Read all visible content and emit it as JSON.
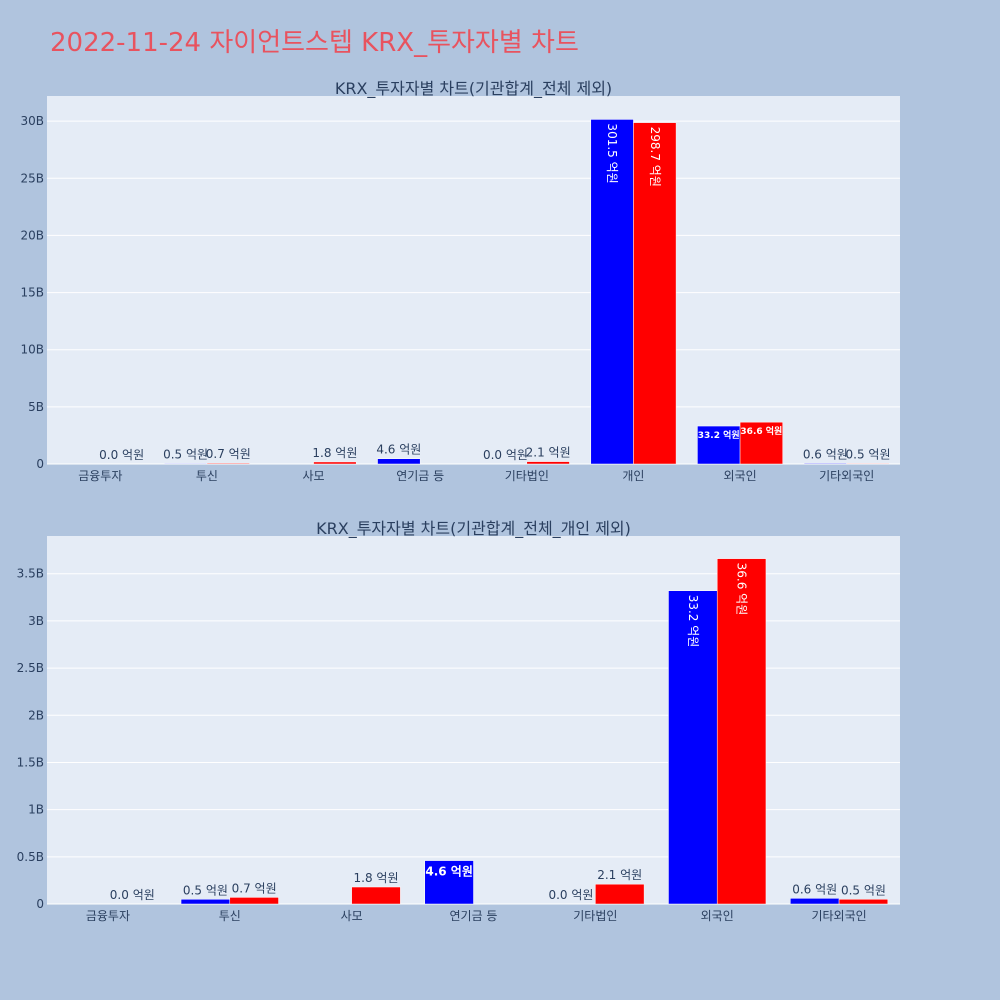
{
  "page": {
    "title": "2022-11-24 자이언트스텝 KRX_투자자별 차트"
  },
  "colors": {
    "background": "#b0c4de",
    "plot_bg": "#e5ecf6",
    "buy": "#0000ff",
    "sell": "#ff0000",
    "title": "#e8535f"
  },
  "chart_data": [
    {
      "type": "bar",
      "title": "KRX_투자자별 차트(기관합계_전체 제외)",
      "categories": [
        "금융투자",
        "투신",
        "사모",
        "연기금 등",
        "기타법인",
        "개인",
        "외국인",
        "기타외국인"
      ],
      "y_ticks": [
        "0",
        "5B",
        "10B",
        "15B",
        "20B",
        "25B",
        "30B"
      ],
      "ylim": [
        0,
        32200000000
      ],
      "series": [
        {
          "color": "#0000ff",
          "values": [
            0,
            50000000,
            0,
            460000000,
            0,
            30150000000,
            3320000000,
            60000000
          ],
          "labels": [
            "",
            "0.5 억원",
            "",
            "4.6 억원",
            "0.0 억원",
            "301.5 억원",
            "33.2 억원",
            "0.6 억원"
          ]
        },
        {
          "color": "#ff0000",
          "values": [
            0,
            70000000,
            180000000,
            0,
            210000000,
            29870000000,
            3660000000,
            50000000
          ],
          "labels": [
            "0.0 억원",
            "0.7 억원",
            "1.8 억원",
            "",
            "2.1 억원",
            "298.7 억원",
            "36.6 억원",
            "0.5 억원"
          ]
        }
      ]
    },
    {
      "type": "bar",
      "title": "KRX_투자자별 차트(기관합계_전체_개인 제외)",
      "categories": [
        "금융투자",
        "투신",
        "사모",
        "연기금 등",
        "기타법인",
        "외국인",
        "기타외국인"
      ],
      "y_ticks": [
        "0",
        "0.5B",
        "1B",
        "1.5B",
        "2B",
        "2.5B",
        "3B",
        "3.5B"
      ],
      "ylim": [
        0,
        3900000000
      ],
      "series": [
        {
          "color": "#0000ff",
          "values": [
            0,
            50000000,
            0,
            460000000,
            0,
            3320000000,
            60000000
          ],
          "labels": [
            "",
            "0.5 억원",
            "",
            "4.6 억원",
            "0.0 억원",
            "33.2 억원",
            "0.6 억원"
          ]
        },
        {
          "color": "#ff0000",
          "values": [
            0,
            70000000,
            180000000,
            0,
            210000000,
            3660000000,
            50000000
          ],
          "labels": [
            "0.0 억원",
            "0.7 억원",
            "1.8 억원",
            "",
            "2.1 억원",
            "36.6 억원",
            "0.5 억원"
          ]
        }
      ]
    }
  ]
}
